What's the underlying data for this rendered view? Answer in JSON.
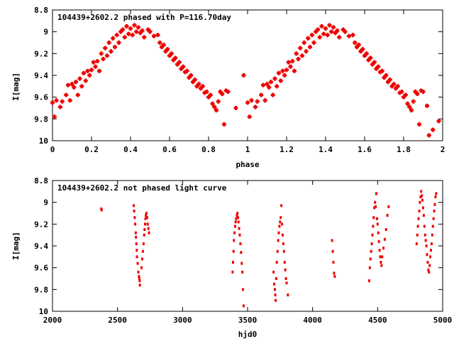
{
  "colors": {
    "marker": "#ee0000",
    "axis": "#000000",
    "background": "#ffffff"
  },
  "chart_data": [
    {
      "type": "scatter",
      "title": "104439+2602.2 phased with P=116.70day",
      "xlabel": "phase",
      "ylabel": "I[mag]",
      "xlim": [
        0,
        2
      ],
      "ylim": [
        10,
        8.8
      ],
      "y_inverted": true,
      "grid": false,
      "marker": "filled-square-cross",
      "x_ticks": [
        "0",
        "0.2",
        "0.4",
        "0.6",
        "0.8",
        "1",
        "1.2",
        "1.4",
        "1.6",
        "1.8",
        "2"
      ],
      "y_ticks": [
        "8.8",
        "9",
        "9.2",
        "9.4",
        "9.6",
        "9.8",
        "10"
      ],
      "points": [
        [
          0.0,
          9.65
        ],
        [
          0.01,
          9.78
        ],
        [
          0.02,
          9.63
        ],
        [
          0.04,
          9.69
        ],
        [
          0.05,
          9.64
        ],
        [
          0.07,
          9.58
        ],
        [
          0.08,
          9.49
        ],
        [
          0.09,
          9.63
        ],
        [
          0.1,
          9.48
        ],
        [
          0.11,
          9.51
        ],
        [
          0.12,
          9.46
        ],
        [
          0.13,
          9.58
        ],
        [
          0.14,
          9.43
        ],
        [
          0.15,
          9.5
        ],
        [
          0.16,
          9.38
        ],
        [
          0.17,
          9.45
        ],
        [
          0.18,
          9.36
        ],
        [
          0.19,
          9.4
        ],
        [
          0.2,
          9.35
        ],
        [
          0.21,
          9.28
        ],
        [
          0.22,
          9.32
        ],
        [
          0.23,
          9.27
        ],
        [
          0.24,
          9.36
        ],
        [
          0.25,
          9.2
        ],
        [
          0.26,
          9.25
        ],
        [
          0.27,
          9.15
        ],
        [
          0.28,
          9.22
        ],
        [
          0.29,
          9.1
        ],
        [
          0.3,
          9.18
        ],
        [
          0.31,
          9.06
        ],
        [
          0.32,
          9.14
        ],
        [
          0.33,
          9.03
        ],
        [
          0.34,
          9.1
        ],
        [
          0.35,
          9.0
        ],
        [
          0.36,
          8.98
        ],
        [
          0.37,
          9.05
        ],
        [
          0.38,
          8.95
        ],
        [
          0.39,
          9.02
        ],
        [
          0.4,
          8.97
        ],
        [
          0.41,
          9.03
        ],
        [
          0.42,
          8.94
        ],
        [
          0.43,
          9.0
        ],
        [
          0.44,
          8.96
        ],
        [
          0.45,
          9.01
        ],
        [
          0.46,
          8.99
        ],
        [
          0.47,
          9.05
        ],
        [
          0.49,
          8.98
        ],
        [
          0.5,
          9.0
        ],
        [
          0.52,
          9.04
        ],
        [
          0.54,
          9.03
        ],
        [
          0.55,
          9.1
        ],
        [
          0.56,
          9.14
        ],
        [
          0.57,
          9.12
        ],
        [
          0.58,
          9.18
        ],
        [
          0.59,
          9.16
        ],
        [
          0.6,
          9.22
        ],
        [
          0.61,
          9.2
        ],
        [
          0.62,
          9.26
        ],
        [
          0.63,
          9.24
        ],
        [
          0.64,
          9.3
        ],
        [
          0.65,
          9.28
        ],
        [
          0.66,
          9.34
        ],
        [
          0.67,
          9.32
        ],
        [
          0.68,
          9.37
        ],
        [
          0.69,
          9.36
        ],
        [
          0.7,
          9.42
        ],
        [
          0.71,
          9.4
        ],
        [
          0.72,
          9.46
        ],
        [
          0.73,
          9.44
        ],
        [
          0.74,
          9.5
        ],
        [
          0.75,
          9.48
        ],
        [
          0.76,
          9.52
        ],
        [
          0.77,
          9.5
        ],
        [
          0.78,
          9.56
        ],
        [
          0.79,
          9.55
        ],
        [
          0.8,
          9.6
        ],
        [
          0.81,
          9.58
        ],
        [
          0.82,
          9.66
        ],
        [
          0.83,
          9.69
        ],
        [
          0.84,
          9.72
        ],
        [
          0.85,
          9.64
        ],
        [
          0.86,
          9.55
        ],
        [
          0.87,
          9.57
        ],
        [
          0.88,
          9.85
        ],
        [
          0.89,
          9.54
        ],
        [
          0.9,
          9.55
        ],
        [
          0.94,
          9.7
        ],
        [
          0.98,
          9.4
        ],
        [
          1.0,
          9.65
        ],
        [
          1.01,
          9.78
        ],
        [
          1.02,
          9.63
        ],
        [
          1.04,
          9.69
        ],
        [
          1.05,
          9.64
        ],
        [
          1.07,
          9.58
        ],
        [
          1.08,
          9.49
        ],
        [
          1.09,
          9.63
        ],
        [
          1.1,
          9.48
        ],
        [
          1.11,
          9.51
        ],
        [
          1.12,
          9.46
        ],
        [
          1.13,
          9.58
        ],
        [
          1.14,
          9.43
        ],
        [
          1.15,
          9.5
        ],
        [
          1.16,
          9.38
        ],
        [
          1.17,
          9.45
        ],
        [
          1.18,
          9.36
        ],
        [
          1.19,
          9.4
        ],
        [
          1.2,
          9.35
        ],
        [
          1.21,
          9.28
        ],
        [
          1.22,
          9.32
        ],
        [
          1.23,
          9.27
        ],
        [
          1.24,
          9.36
        ],
        [
          1.25,
          9.2
        ],
        [
          1.26,
          9.25
        ],
        [
          1.27,
          9.15
        ],
        [
          1.28,
          9.22
        ],
        [
          1.29,
          9.1
        ],
        [
          1.3,
          9.18
        ],
        [
          1.31,
          9.06
        ],
        [
          1.32,
          9.14
        ],
        [
          1.33,
          9.03
        ],
        [
          1.34,
          9.1
        ],
        [
          1.35,
          9.0
        ],
        [
          1.36,
          8.98
        ],
        [
          1.37,
          9.05
        ],
        [
          1.38,
          8.95
        ],
        [
          1.39,
          9.02
        ],
        [
          1.4,
          8.97
        ],
        [
          1.41,
          9.03
        ],
        [
          1.42,
          8.94
        ],
        [
          1.43,
          9.0
        ],
        [
          1.44,
          8.96
        ],
        [
          1.45,
          9.01
        ],
        [
          1.46,
          8.99
        ],
        [
          1.47,
          9.05
        ],
        [
          1.49,
          8.98
        ],
        [
          1.5,
          9.0
        ],
        [
          1.52,
          9.04
        ],
        [
          1.54,
          9.03
        ],
        [
          1.55,
          9.1
        ],
        [
          1.56,
          9.14
        ],
        [
          1.57,
          9.12
        ],
        [
          1.58,
          9.18
        ],
        [
          1.59,
          9.16
        ],
        [
          1.6,
          9.22
        ],
        [
          1.61,
          9.2
        ],
        [
          1.62,
          9.26
        ],
        [
          1.63,
          9.24
        ],
        [
          1.64,
          9.3
        ],
        [
          1.65,
          9.28
        ],
        [
          1.66,
          9.34
        ],
        [
          1.67,
          9.32
        ],
        [
          1.68,
          9.37
        ],
        [
          1.69,
          9.36
        ],
        [
          1.7,
          9.42
        ],
        [
          1.71,
          9.4
        ],
        [
          1.72,
          9.46
        ],
        [
          1.73,
          9.44
        ],
        [
          1.74,
          9.5
        ],
        [
          1.75,
          9.48
        ],
        [
          1.76,
          9.52
        ],
        [
          1.77,
          9.5
        ],
        [
          1.78,
          9.56
        ],
        [
          1.79,
          9.55
        ],
        [
          1.8,
          9.6
        ],
        [
          1.81,
          9.58
        ],
        [
          1.82,
          9.66
        ],
        [
          1.83,
          9.69
        ],
        [
          1.84,
          9.72
        ],
        [
          1.85,
          9.64
        ],
        [
          1.86,
          9.55
        ],
        [
          1.87,
          9.57
        ],
        [
          1.88,
          9.85
        ],
        [
          1.89,
          9.54
        ],
        [
          1.9,
          9.55
        ],
        [
          1.92,
          9.68
        ],
        [
          1.93,
          9.95
        ],
        [
          1.95,
          9.9
        ],
        [
          1.98,
          9.82
        ]
      ]
    },
    {
      "type": "scatter",
      "title": "104439+2602.2 not phased light curve",
      "xlabel": "hjd0",
      "ylabel": "I[mag]",
      "xlim": [
        2000,
        5000
      ],
      "ylim": [
        10,
        8.8
      ],
      "y_inverted": true,
      "grid": false,
      "marker": "small-dot",
      "x_ticks": [
        "2000",
        "2500",
        "3000",
        "3500",
        "4000",
        "4500",
        "5000"
      ],
      "y_ticks": [
        "8.8",
        "9",
        "9.2",
        "9.4",
        "9.6",
        "9.8",
        "10"
      ],
      "points": [
        [
          2375,
          9.06
        ],
        [
          2378,
          9.07
        ],
        [
          2625,
          9.03
        ],
        [
          2628,
          9.08
        ],
        [
          2632,
          9.14
        ],
        [
          2636,
          9.2
        ],
        [
          2640,
          9.28
        ],
        [
          2642,
          9.32
        ],
        [
          2645,
          9.38
        ],
        [
          2648,
          9.44
        ],
        [
          2650,
          9.5
        ],
        [
          2655,
          9.56
        ],
        [
          2660,
          9.64
        ],
        [
          2665,
          9.68
        ],
        [
          2668,
          9.7
        ],
        [
          2670,
          9.72
        ],
        [
          2672,
          9.76
        ],
        [
          2685,
          9.6
        ],
        [
          2690,
          9.52
        ],
        [
          2695,
          9.45
        ],
        [
          2700,
          9.38
        ],
        [
          2705,
          9.3
        ],
        [
          2708,
          9.25
        ],
        [
          2712,
          9.2
        ],
        [
          2715,
          9.15
        ],
        [
          2718,
          9.12
        ],
        [
          2722,
          9.1
        ],
        [
          2728,
          9.14
        ],
        [
          2732,
          9.2
        ],
        [
          2738,
          9.24
        ],
        [
          2742,
          9.28
        ],
        [
          3385,
          9.64
        ],
        [
          3388,
          9.55
        ],
        [
          3392,
          9.45
        ],
        [
          3395,
          9.35
        ],
        [
          3400,
          9.28
        ],
        [
          3404,
          9.22
        ],
        [
          3408,
          9.18
        ],
        [
          3412,
          9.15
        ],
        [
          3418,
          9.12
        ],
        [
          3422,
          9.1
        ],
        [
          3426,
          9.14
        ],
        [
          3430,
          9.18
        ],
        [
          3435,
          9.24
        ],
        [
          3440,
          9.3
        ],
        [
          3445,
          9.38
        ],
        [
          3450,
          9.46
        ],
        [
          3455,
          9.56
        ],
        [
          3460,
          9.64
        ],
        [
          3465,
          9.8
        ],
        [
          3470,
          9.95
        ],
        [
          3700,
          9.64
        ],
        [
          3705,
          9.75
        ],
        [
          3710,
          9.8
        ],
        [
          3713,
          9.85
        ],
        [
          3716,
          9.9
        ],
        [
          3720,
          9.7
        ],
        [
          3725,
          9.55
        ],
        [
          3730,
          9.45
        ],
        [
          3735,
          9.35
        ],
        [
          3740,
          9.28
        ],
        [
          3745,
          9.22
        ],
        [
          3750,
          9.18
        ],
        [
          3755,
          9.14
        ],
        [
          3760,
          9.03
        ],
        [
          3765,
          9.2
        ],
        [
          3770,
          9.3
        ],
        [
          3775,
          9.38
        ],
        [
          3780,
          9.45
        ],
        [
          3785,
          9.55
        ],
        [
          3790,
          9.62
        ],
        [
          3795,
          9.7
        ],
        [
          3800,
          9.74
        ],
        [
          3810,
          9.85
        ],
        [
          4150,
          9.35
        ],
        [
          4155,
          9.45
        ],
        [
          4160,
          9.55
        ],
        [
          4165,
          9.65
        ],
        [
          4170,
          9.68
        ],
        [
          4435,
          9.72
        ],
        [
          4440,
          9.6
        ],
        [
          4445,
          9.52
        ],
        [
          4450,
          9.45
        ],
        [
          4455,
          9.38
        ],
        [
          4460,
          9.3
        ],
        [
          4465,
          9.22
        ],
        [
          4470,
          9.14
        ],
        [
          4475,
          9.05
        ],
        [
          4480,
          9.0
        ],
        [
          4485,
          9.04
        ],
        [
          4490,
          8.92
        ],
        [
          4495,
          9.15
        ],
        [
          4500,
          9.2
        ],
        [
          4505,
          9.28
        ],
        [
          4510,
          9.36
        ],
        [
          4515,
          9.44
        ],
        [
          4520,
          9.5
        ],
        [
          4525,
          9.55
        ],
        [
          4530,
          9.58
        ],
        [
          4535,
          9.5
        ],
        [
          4545,
          9.42
        ],
        [
          4555,
          9.34
        ],
        [
          4565,
          9.25
        ],
        [
          4575,
          9.12
        ],
        [
          4585,
          9.04
        ],
        [
          4800,
          9.38
        ],
        [
          4805,
          9.3
        ],
        [
          4810,
          9.22
        ],
        [
          4815,
          9.15
        ],
        [
          4820,
          9.08
        ],
        [
          4825,
          9.0
        ],
        [
          4830,
          8.95
        ],
        [
          4835,
          8.9
        ],
        [
          4840,
          8.94
        ],
        [
          4845,
          8.98
        ],
        [
          4850,
          9.05
        ],
        [
          4855,
          9.12
        ],
        [
          4860,
          9.22
        ],
        [
          4865,
          9.3
        ],
        [
          4870,
          9.35
        ],
        [
          4875,
          9.4
        ],
        [
          4880,
          9.48
        ],
        [
          4885,
          9.55
        ],
        [
          4890,
          9.62
        ],
        [
          4895,
          9.64
        ],
        [
          4900,
          9.58
        ],
        [
          4905,
          9.5
        ],
        [
          4910,
          9.44
        ],
        [
          4915,
          9.38
        ],
        [
          4920,
          9.3
        ],
        [
          4925,
          9.22
        ],
        [
          4930,
          9.15
        ],
        [
          4935,
          9.08
        ],
        [
          4940,
          9.02
        ],
        [
          4945,
          8.95
        ],
        [
          4950,
          8.92
        ]
      ]
    }
  ]
}
